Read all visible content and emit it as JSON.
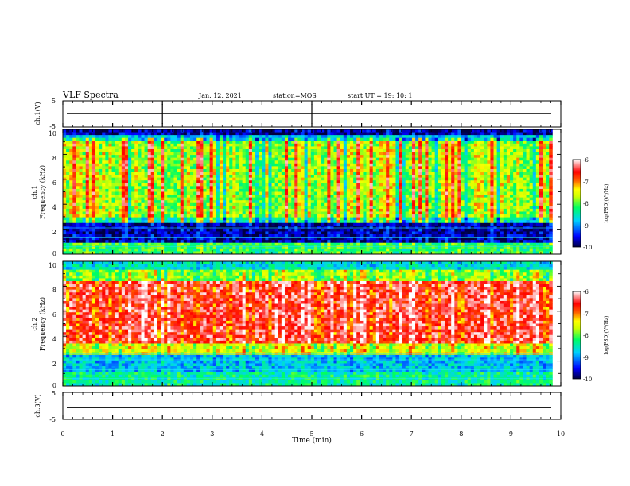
{
  "chart_data": {
    "type": "heatmap",
    "header": {
      "title": "VLF Spectra",
      "date": "Jan. 12, 2021",
      "station": "station=MOS",
      "start": "start  UT  =   19: 10: 1"
    },
    "x_axis": {
      "label": "Time  (min)",
      "range": [
        0,
        10
      ],
      "ticks": [
        "0",
        "1",
        "2",
        "3",
        "4",
        "5",
        "6",
        "7",
        "8",
        "9",
        "10"
      ]
    },
    "panels": [
      {
        "kind": "waveform",
        "ylabel": "ch.1(V)",
        "yrange": [
          -5,
          5
        ],
        "ticks": [
          "5",
          "-5"
        ],
        "level": 0
      },
      {
        "kind": "spectrogram",
        "ylabel_line1": "ch.1",
        "ylabel_line2": "Frequency (kHz)",
        "yrange": [
          0,
          10
        ],
        "ticks": [
          "0",
          "2",
          "4",
          "6",
          "8",
          "10"
        ],
        "colorbar": {
          "label": "log(PSD)(V²/Hz)",
          "range": [
            -10,
            -6
          ],
          "ticks": [
            "-6",
            "-7",
            "-8",
            "-9",
            "-10"
          ]
        }
      },
      {
        "kind": "spectrogram",
        "ylabel_line1": "ch.2",
        "ylabel_line2": "Frequency (kHz)",
        "yrange": [
          0,
          10
        ],
        "ticks": [
          "0",
          "2",
          "4",
          "6",
          "8",
          "10"
        ],
        "colorbar": {
          "label": "log(PSD)(V²/Hz)",
          "range": [
            -10,
            -6
          ],
          "ticks": [
            "-6",
            "-7",
            "-8",
            "-9",
            "-10"
          ]
        }
      },
      {
        "kind": "waveform",
        "ylabel": "ch.3(V)",
        "yrange": [
          -5,
          5
        ],
        "ticks": [
          "5",
          "-5"
        ],
        "level": -1.5
      }
    ],
    "time_extent_min": 9.83,
    "colormap": [
      "#000060",
      "#0000ff",
      "#00c0ff",
      "#00ff60",
      "#c0ff00",
      "#ffff00",
      "#ff8000",
      "#ff0000",
      "#ff9090",
      "#ffffff"
    ]
  }
}
